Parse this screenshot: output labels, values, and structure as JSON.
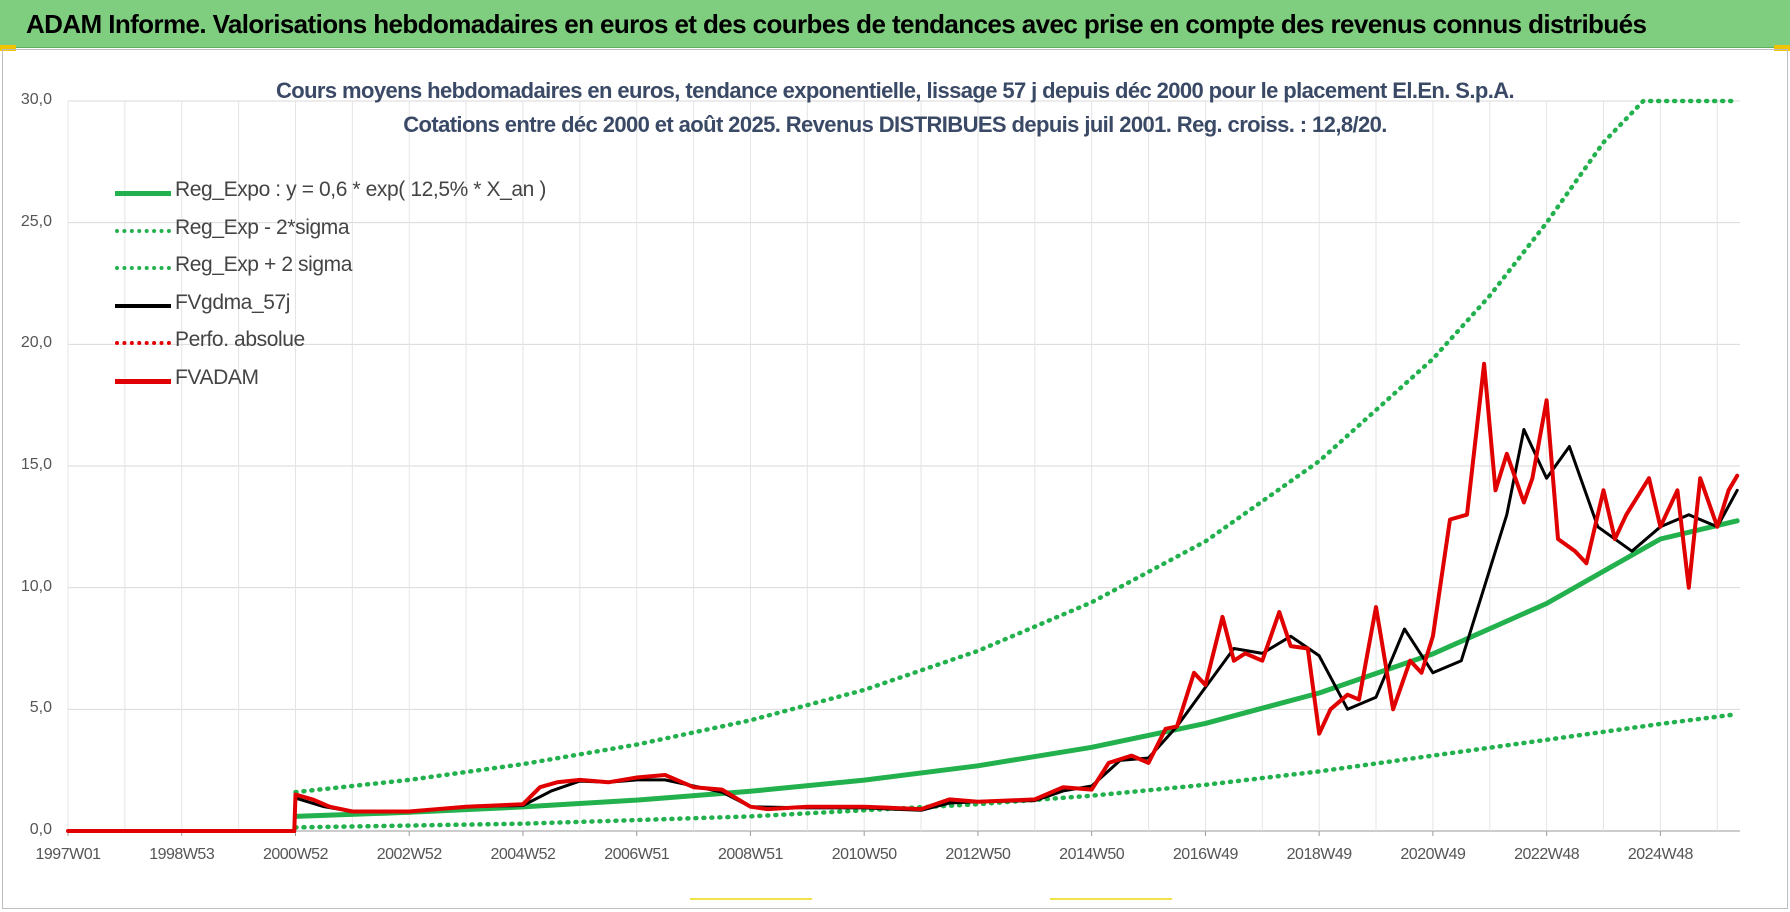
{
  "banner": {
    "title": "ADAM Informe. Valorisations hebdomadaires en euros et des courbes de tendances avec prise en compte des revenus connus distribués",
    "background": "#7fcd7f"
  },
  "chart_data": {
    "type": "line",
    "title": "Cours moyens hebdomadaires en euros, tendance exponentielle, lissage 57 j depuis déc 2000 pour le placement El.En. S.p.A.",
    "subtitle": "Cotations entre déc 2000 et août 2025. Revenus DISTRIBUES depuis juil 2001. Reg. croiss. : 12,8/20.",
    "xlabel": "",
    "ylabel": "",
    "ylim": [
      0,
      30
    ],
    "xlim": [
      1997.0,
      2026.4
    ],
    "y_ticks": [
      "0,0",
      "5,0",
      "10,0",
      "15,0",
      "20,0",
      "25,0",
      "30,0"
    ],
    "x_ticks": [
      "1997W01",
      "1998W53",
      "2000W52",
      "2002W52",
      "2004W52",
      "2006W51",
      "2008W51",
      "2010W50",
      "2012W50",
      "2014W50",
      "2016W49",
      "2018W49",
      "2020W49",
      "2022W48",
      "2024W48"
    ],
    "x_tick_years": [
      1997.0,
      1999.0,
      2001.0,
      2003.0,
      2005.0,
      2007.0,
      2009.0,
      2011.0,
      2013.0,
      2015.0,
      2017.0,
      2019.0,
      2021.0,
      2023.0,
      2025.0
    ],
    "grid": true,
    "legend_position": "top-left",
    "series": [
      {
        "name": "Reg_Expo : y = 0,6 * exp( 12,5% *  X_an )",
        "style": "solid",
        "color": "#22b14c",
        "width": 5,
        "x": [
          2001.0,
          2003.0,
          2005.0,
          2007.0,
          2009.0,
          2011.0,
          2013.0,
          2015.0,
          2017.0,
          2019.0,
          2021.0,
          2023.0,
          2025.0,
          2026.35
        ],
        "y": [
          0.6,
          0.77,
          0.99,
          1.27,
          1.63,
          2.09,
          2.68,
          3.44,
          4.42,
          5.67,
          7.28,
          9.35,
          12.0,
          12.75
        ]
      },
      {
        "name": "Reg_Exp - 2*sigma",
        "style": "dotted",
        "color": "#22b14c",
        "width": 4,
        "x": [
          2001.0,
          2005.0,
          2009.0,
          2013.0,
          2015.0,
          2017.0,
          2019.0,
          2021.0,
          2023.0,
          2025.0,
          2026.35
        ],
        "y": [
          0.15,
          0.3,
          0.6,
          1.1,
          1.45,
          1.9,
          2.45,
          3.1,
          3.75,
          4.4,
          4.8
        ]
      },
      {
        "name": "Reg_Exp + 2 sigma",
        "style": "dotted",
        "color": "#22b14c",
        "width": 4,
        "x": [
          2001.0,
          2003.0,
          2005.0,
          2007.0,
          2009.0,
          2011.0,
          2013.0,
          2015.0,
          2017.0,
          2019.0,
          2021.0,
          2022.0,
          2023.0,
          2024.0,
          2024.7,
          2026.35
        ],
        "y": [
          1.6,
          2.1,
          2.75,
          3.55,
          4.55,
          5.8,
          7.4,
          9.4,
          11.9,
          15.2,
          19.4,
          22.0,
          25.0,
          28.3,
          30.0,
          30.0
        ]
      },
      {
        "name": "FVgdma_57j",
        "style": "solid",
        "color": "#000000",
        "width": 3,
        "x": [
          2001.0,
          2001.5,
          2002.0,
          2003.0,
          2004.0,
          2005.0,
          2005.5,
          2006.0,
          2006.5,
          2007.0,
          2007.5,
          2008.0,
          2008.5,
          2009.0,
          2010.0,
          2011.0,
          2012.0,
          2012.5,
          2013.0,
          2014.0,
          2014.5,
          2015.0,
          2015.5,
          2016.0,
          2016.5,
          2017.0,
          2017.5,
          2018.0,
          2018.5,
          2019.0,
          2019.5,
          2020.0,
          2020.5,
          2021.0,
          2021.5,
          2021.9,
          2022.3,
          2022.6,
          2023.0,
          2023.4,
          2023.9,
          2024.5,
          2025.0,
          2025.5,
          2026.0,
          2026.35
        ],
        "y": [
          1.35,
          1.0,
          0.8,
          0.8,
          1.0,
          1.05,
          1.65,
          2.05,
          2.0,
          2.1,
          2.1,
          1.85,
          1.6,
          1.0,
          0.95,
          0.95,
          0.85,
          1.15,
          1.2,
          1.25,
          1.65,
          1.85,
          2.9,
          3.0,
          4.3,
          5.9,
          7.5,
          7.3,
          8.0,
          7.2,
          5.0,
          5.5,
          8.3,
          6.5,
          7.0,
          10.0,
          13.0,
          16.5,
          14.5,
          15.8,
          12.5,
          11.5,
          12.5,
          13.0,
          12.5,
          14.0
        ]
      },
      {
        "name": "Perfo. absolue",
        "style": "dotted",
        "color": "#e00000",
        "width": 3,
        "x": [],
        "y": []
      },
      {
        "name": "FVADAM",
        "style": "solid",
        "color": "#e00000",
        "width": 4,
        "x": [
          1997.0,
          2000.98,
          2001.0,
          2001.3,
          2001.6,
          2002.0,
          2003.0,
          2004.0,
          2005.0,
          2005.3,
          2005.6,
          2006.0,
          2006.5,
          2007.0,
          2007.5,
          2008.0,
          2008.5,
          2009.0,
          2009.3,
          2010.0,
          2011.0,
          2012.0,
          2012.5,
          2013.0,
          2014.0,
          2014.5,
          2015.0,
          2015.3,
          2015.7,
          2016.0,
          2016.3,
          2016.5,
          2016.8,
          2017.0,
          2017.3,
          2017.5,
          2017.7,
          2018.0,
          2018.3,
          2018.5,
          2018.8,
          2019.0,
          2019.2,
          2019.5,
          2019.7,
          2020.0,
          2020.3,
          2020.6,
          2020.8,
          2021.0,
          2021.3,
          2021.6,
          2021.9,
          2022.1,
          2022.3,
          2022.6,
          2022.75,
          2023.0,
          2023.2,
          2023.5,
          2023.7,
          2024.0,
          2024.2,
          2024.4,
          2024.8,
          2025.0,
          2025.3,
          2025.5,
          2025.7,
          2026.0,
          2026.2,
          2026.35
        ],
        "y": [
          0.0,
          0.0,
          1.5,
          1.3,
          1.0,
          0.8,
          0.8,
          1.0,
          1.1,
          1.8,
          2.0,
          2.1,
          2.0,
          2.2,
          2.3,
          1.8,
          1.7,
          1.0,
          0.9,
          1.0,
          1.0,
          0.9,
          1.3,
          1.2,
          1.3,
          1.8,
          1.7,
          2.8,
          3.1,
          2.8,
          4.2,
          4.3,
          6.5,
          6.0,
          8.8,
          7.0,
          7.3,
          7.0,
          9.0,
          7.6,
          7.5,
          4.0,
          5.0,
          5.6,
          5.4,
          9.2,
          5.0,
          7.0,
          6.5,
          8.0,
          12.8,
          13.0,
          19.2,
          14.0,
          15.5,
          13.5,
          14.5,
          17.7,
          12.0,
          11.5,
          11.0,
          14.0,
          12.0,
          13.0,
          14.5,
          12.5,
          14.0,
          10.0,
          14.5,
          12.5,
          14.0,
          14.6
        ]
      }
    ]
  }
}
